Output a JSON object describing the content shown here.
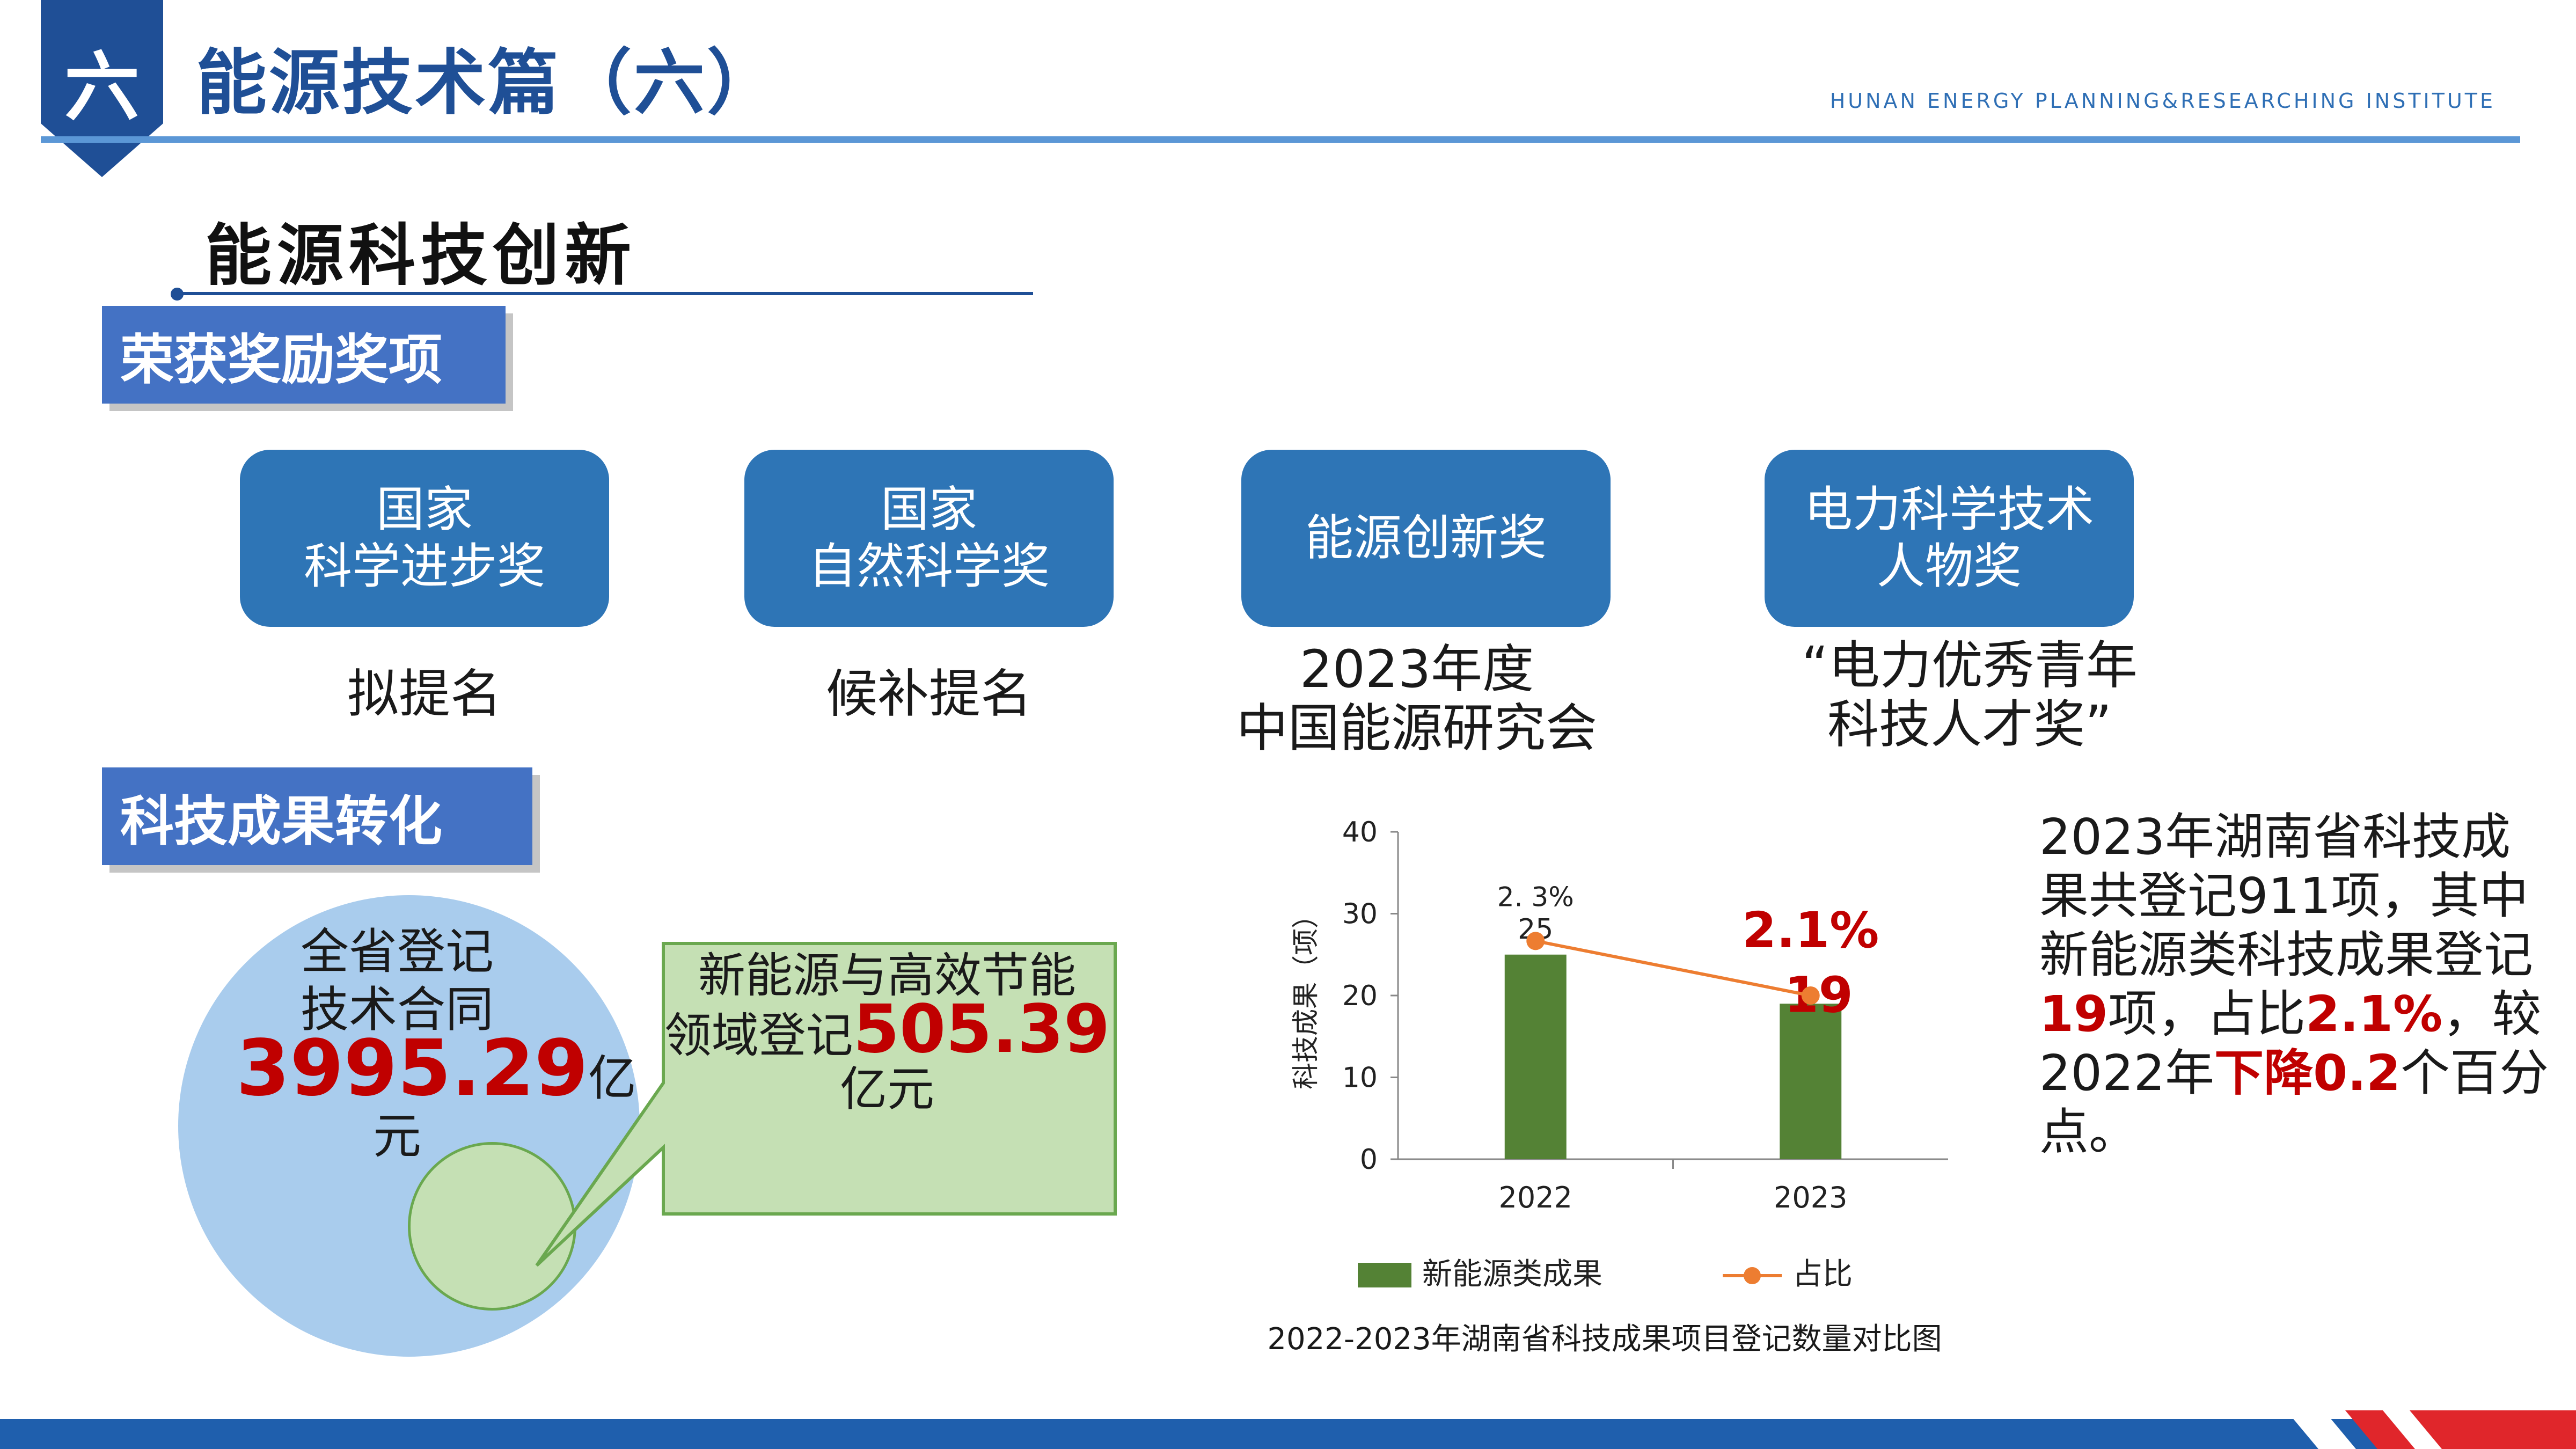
{
  "header": {
    "number_badge": "六",
    "title": "能源技术篇（六）",
    "institute": "HUNAN ENERGY PLANNING&RESEARCHING INSTITUTE"
  },
  "section": {
    "title": "能源科技创新"
  },
  "awards": {
    "tag": "荣获奖励奖项",
    "items": [
      {
        "lines": [
          "国家",
          "科学进步奖"
        ],
        "note_lines": [
          "拟提名"
        ]
      },
      {
        "lines": [
          "国家",
          "自然科学奖"
        ],
        "note_lines": [
          "候补提名"
        ]
      },
      {
        "lines": [
          "能源创新奖"
        ],
        "note_lines": [
          "2023年度",
          "中国能源研究会"
        ]
      },
      {
        "lines": [
          "电力科学技术",
          "人物奖"
        ],
        "note_lines": [
          "“电力优秀青年",
          "科技人才奖”"
        ]
      }
    ]
  },
  "transfer": {
    "tag": "科技成果转化",
    "circle": {
      "line1": "全省登记",
      "line2": "技术合同",
      "value": "3995.29",
      "unit1": "亿",
      "unit2": "元"
    },
    "callout": {
      "line1": "新能源与高效节能",
      "line2_prefix": "领域登记",
      "value": "505.39",
      "unit": "亿元"
    }
  },
  "colors": {
    "bar": "#548235",
    "line": "#ed7d31",
    "accent_red": "#c00000",
    "title_blue": "#1f4f96",
    "card_blue": "#2e75b6"
  },
  "chart_data": {
    "type": "bar",
    "categories": [
      "2022",
      "2023"
    ],
    "series": [
      {
        "name": "新能源类成果",
        "type": "bar",
        "values": [
          25,
          19
        ],
        "labels": [
          "25",
          "19"
        ]
      },
      {
        "name": "占比",
        "type": "line",
        "values": [
          2.3,
          2.1
        ],
        "labels": [
          "2. 3%",
          "2.1%"
        ]
      }
    ],
    "ylabel": "科技成果（项）",
    "ylim": [
      0,
      40
    ],
    "yticks": [
      "0",
      "10",
      "20",
      "30",
      "40"
    ],
    "legend": "bottom",
    "caption": "2022-2023年湖南省科技成果项目登记数量对比图"
  },
  "description": {
    "text1": "2023年湖南省科技成果共登记911项，其中新能源类科技成果登记",
    "hl1": "19",
    "text2": "项，占比",
    "hl2": "2.1%",
    "text3": "，较2022年",
    "hl3": "下降0.2",
    "text4": "个百分点。"
  }
}
